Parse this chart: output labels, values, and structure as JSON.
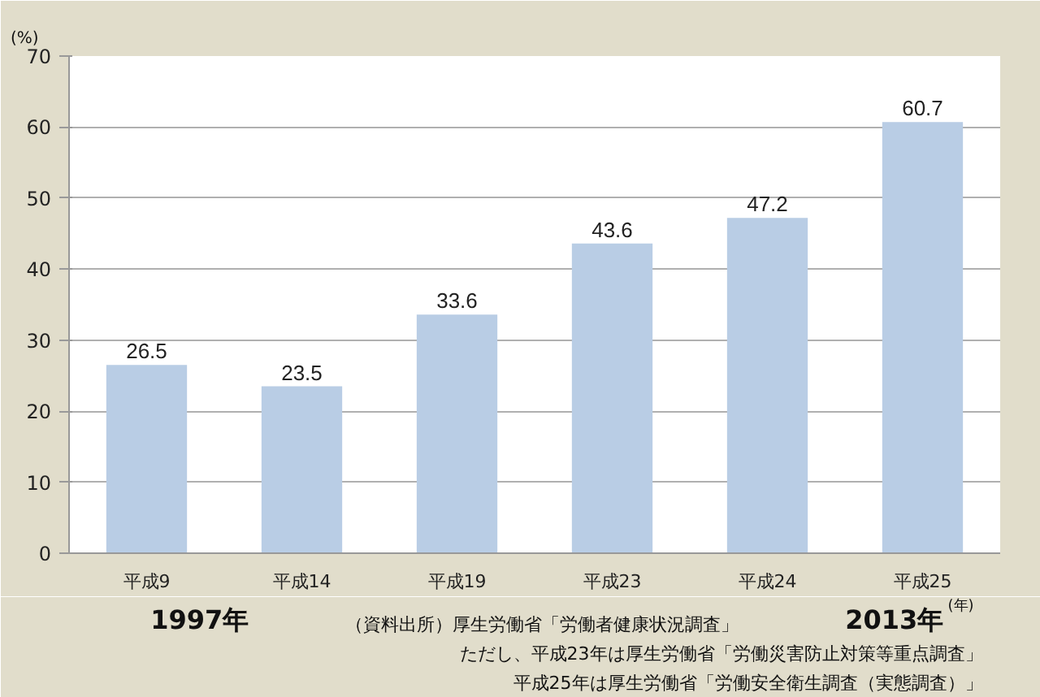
{
  "chart_data": {
    "type": "bar",
    "categories": [
      "平成9",
      "平成14",
      "平成19",
      "平成23",
      "平成24",
      "平成25"
    ],
    "values": [
      26.5,
      23.5,
      33.6,
      43.6,
      47.2,
      60.7
    ],
    "color": "#b9cde5",
    "ylabel": "(%)",
    "xlabel": "(年)",
    "ylim": [
      0,
      70
    ],
    "yticks": [
      0,
      10,
      20,
      30,
      40,
      50,
      60,
      70
    ],
    "grid": "y",
    "data_labels": true,
    "annotations": [
      "1997年",
      "2013年",
      "（資料出所）厚生労働省「労働者健康状況調査」",
      "ただし、平成23年は厚生労働省「労働災害防止対策等重点調査」",
      "平成25年は厚生労働省「労働安全衛生調査（実態調査）」"
    ]
  }
}
